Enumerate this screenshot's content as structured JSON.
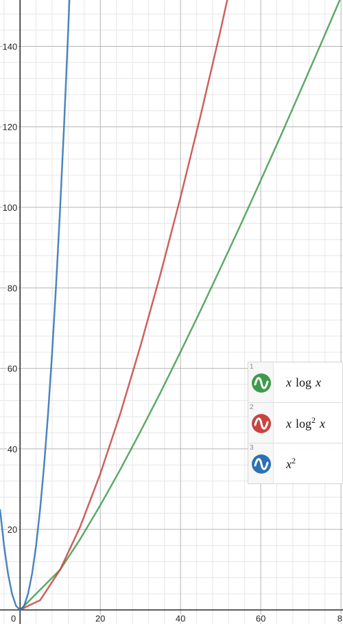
{
  "chart_data": {
    "type": "line",
    "x_ticks": [
      "0",
      "20",
      "40",
      "60",
      "8"
    ],
    "y_ticks": [
      "20",
      "40",
      "60",
      "80",
      "100",
      "120",
      "140"
    ],
    "xlim": [
      -5,
      80.5
    ],
    "ylim": [
      -3.5,
      151.5
    ],
    "grid": true,
    "series": [
      {
        "name": "x log x",
        "color": "#3f9b4c",
        "x": [
          0,
          2,
          5,
          10,
          15,
          20,
          25,
          30,
          35,
          40,
          45,
          50,
          55,
          60,
          65,
          70,
          75,
          80
        ],
        "y": [
          0,
          2.0,
          5.0,
          10.0,
          17.6,
          26.0,
          34.9,
          44.3,
          54.0,
          64.1,
          74.4,
          85.0,
          95.7,
          106.7,
          117.8,
          129.2,
          140.6,
          152.2
        ]
      },
      {
        "name": "x log² x",
        "color": "#c74440",
        "x": [
          0,
          2,
          5,
          10,
          15,
          20,
          25,
          30,
          35,
          40,
          45,
          50,
          52
        ],
        "y": [
          0,
          1.0,
          2.4,
          10.0,
          20.7,
          33.8,
          48.8,
          65.5,
          83.4,
          102.5,
          122.8,
          144.1,
          153.1
        ]
      },
      {
        "name": "x²",
        "color": "#2d70b3",
        "x": [
          -5,
          -4,
          -3,
          -2,
          -1,
          0,
          1,
          2,
          3,
          4,
          5,
          6,
          7,
          8,
          9,
          10,
          11,
          12,
          12.4
        ],
        "y": [
          25,
          16,
          9,
          4,
          1,
          0,
          1,
          4,
          9,
          16,
          25,
          36,
          49,
          64,
          81,
          100,
          121,
          144,
          153.8
        ]
      }
    ]
  },
  "legend": {
    "items": [
      {
        "index": "1",
        "color": "#3f9b4c",
        "icon": "wave-icon"
      },
      {
        "index": "2",
        "color": "#c74440",
        "icon": "wave-icon"
      },
      {
        "index": "3",
        "color": "#2d70b3",
        "icon": "wave-icon"
      }
    ],
    "formula_1": {
      "x1": "x",
      "log": "log",
      "x2": "x"
    },
    "formula_2": {
      "x1": "x",
      "log": "log",
      "exp": "2",
      "x2": "x"
    },
    "formula_3": {
      "x1": "x",
      "exp": "2"
    }
  }
}
